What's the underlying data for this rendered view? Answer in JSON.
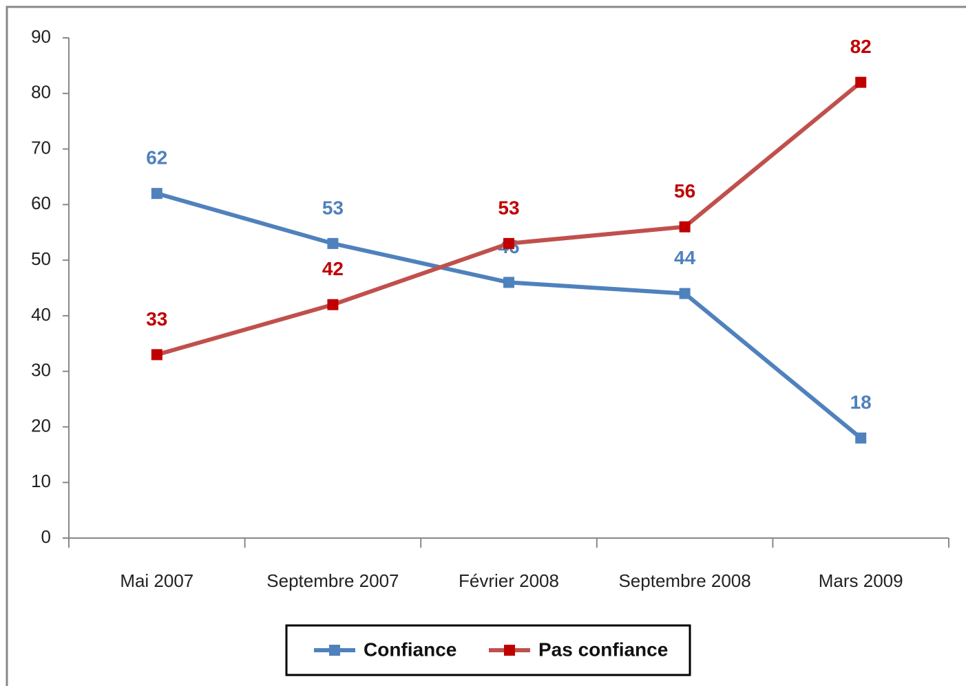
{
  "chart_data": {
    "type": "line",
    "categories": [
      "Mai 2007",
      "Septembre 2007",
      "Février 2008",
      "Septembre 2008",
      "Mars 2009"
    ],
    "series": [
      {
        "name": "Confiance",
        "color": "#4f81bd",
        "label_color": "#4f81bd",
        "values": [
          62,
          53,
          46,
          44,
          18
        ]
      },
      {
        "name": "Pas confiance",
        "color": "#c0504d",
        "marker_color": "#c00000",
        "label_color": "#c00000",
        "values": [
          33,
          42,
          53,
          56,
          82
        ]
      }
    ],
    "ylim": [
      0,
      90
    ],
    "yticks": [
      0,
      10,
      20,
      30,
      40,
      50,
      60,
      70,
      80,
      90
    ],
    "grid": false,
    "legend": "bottom"
  }
}
